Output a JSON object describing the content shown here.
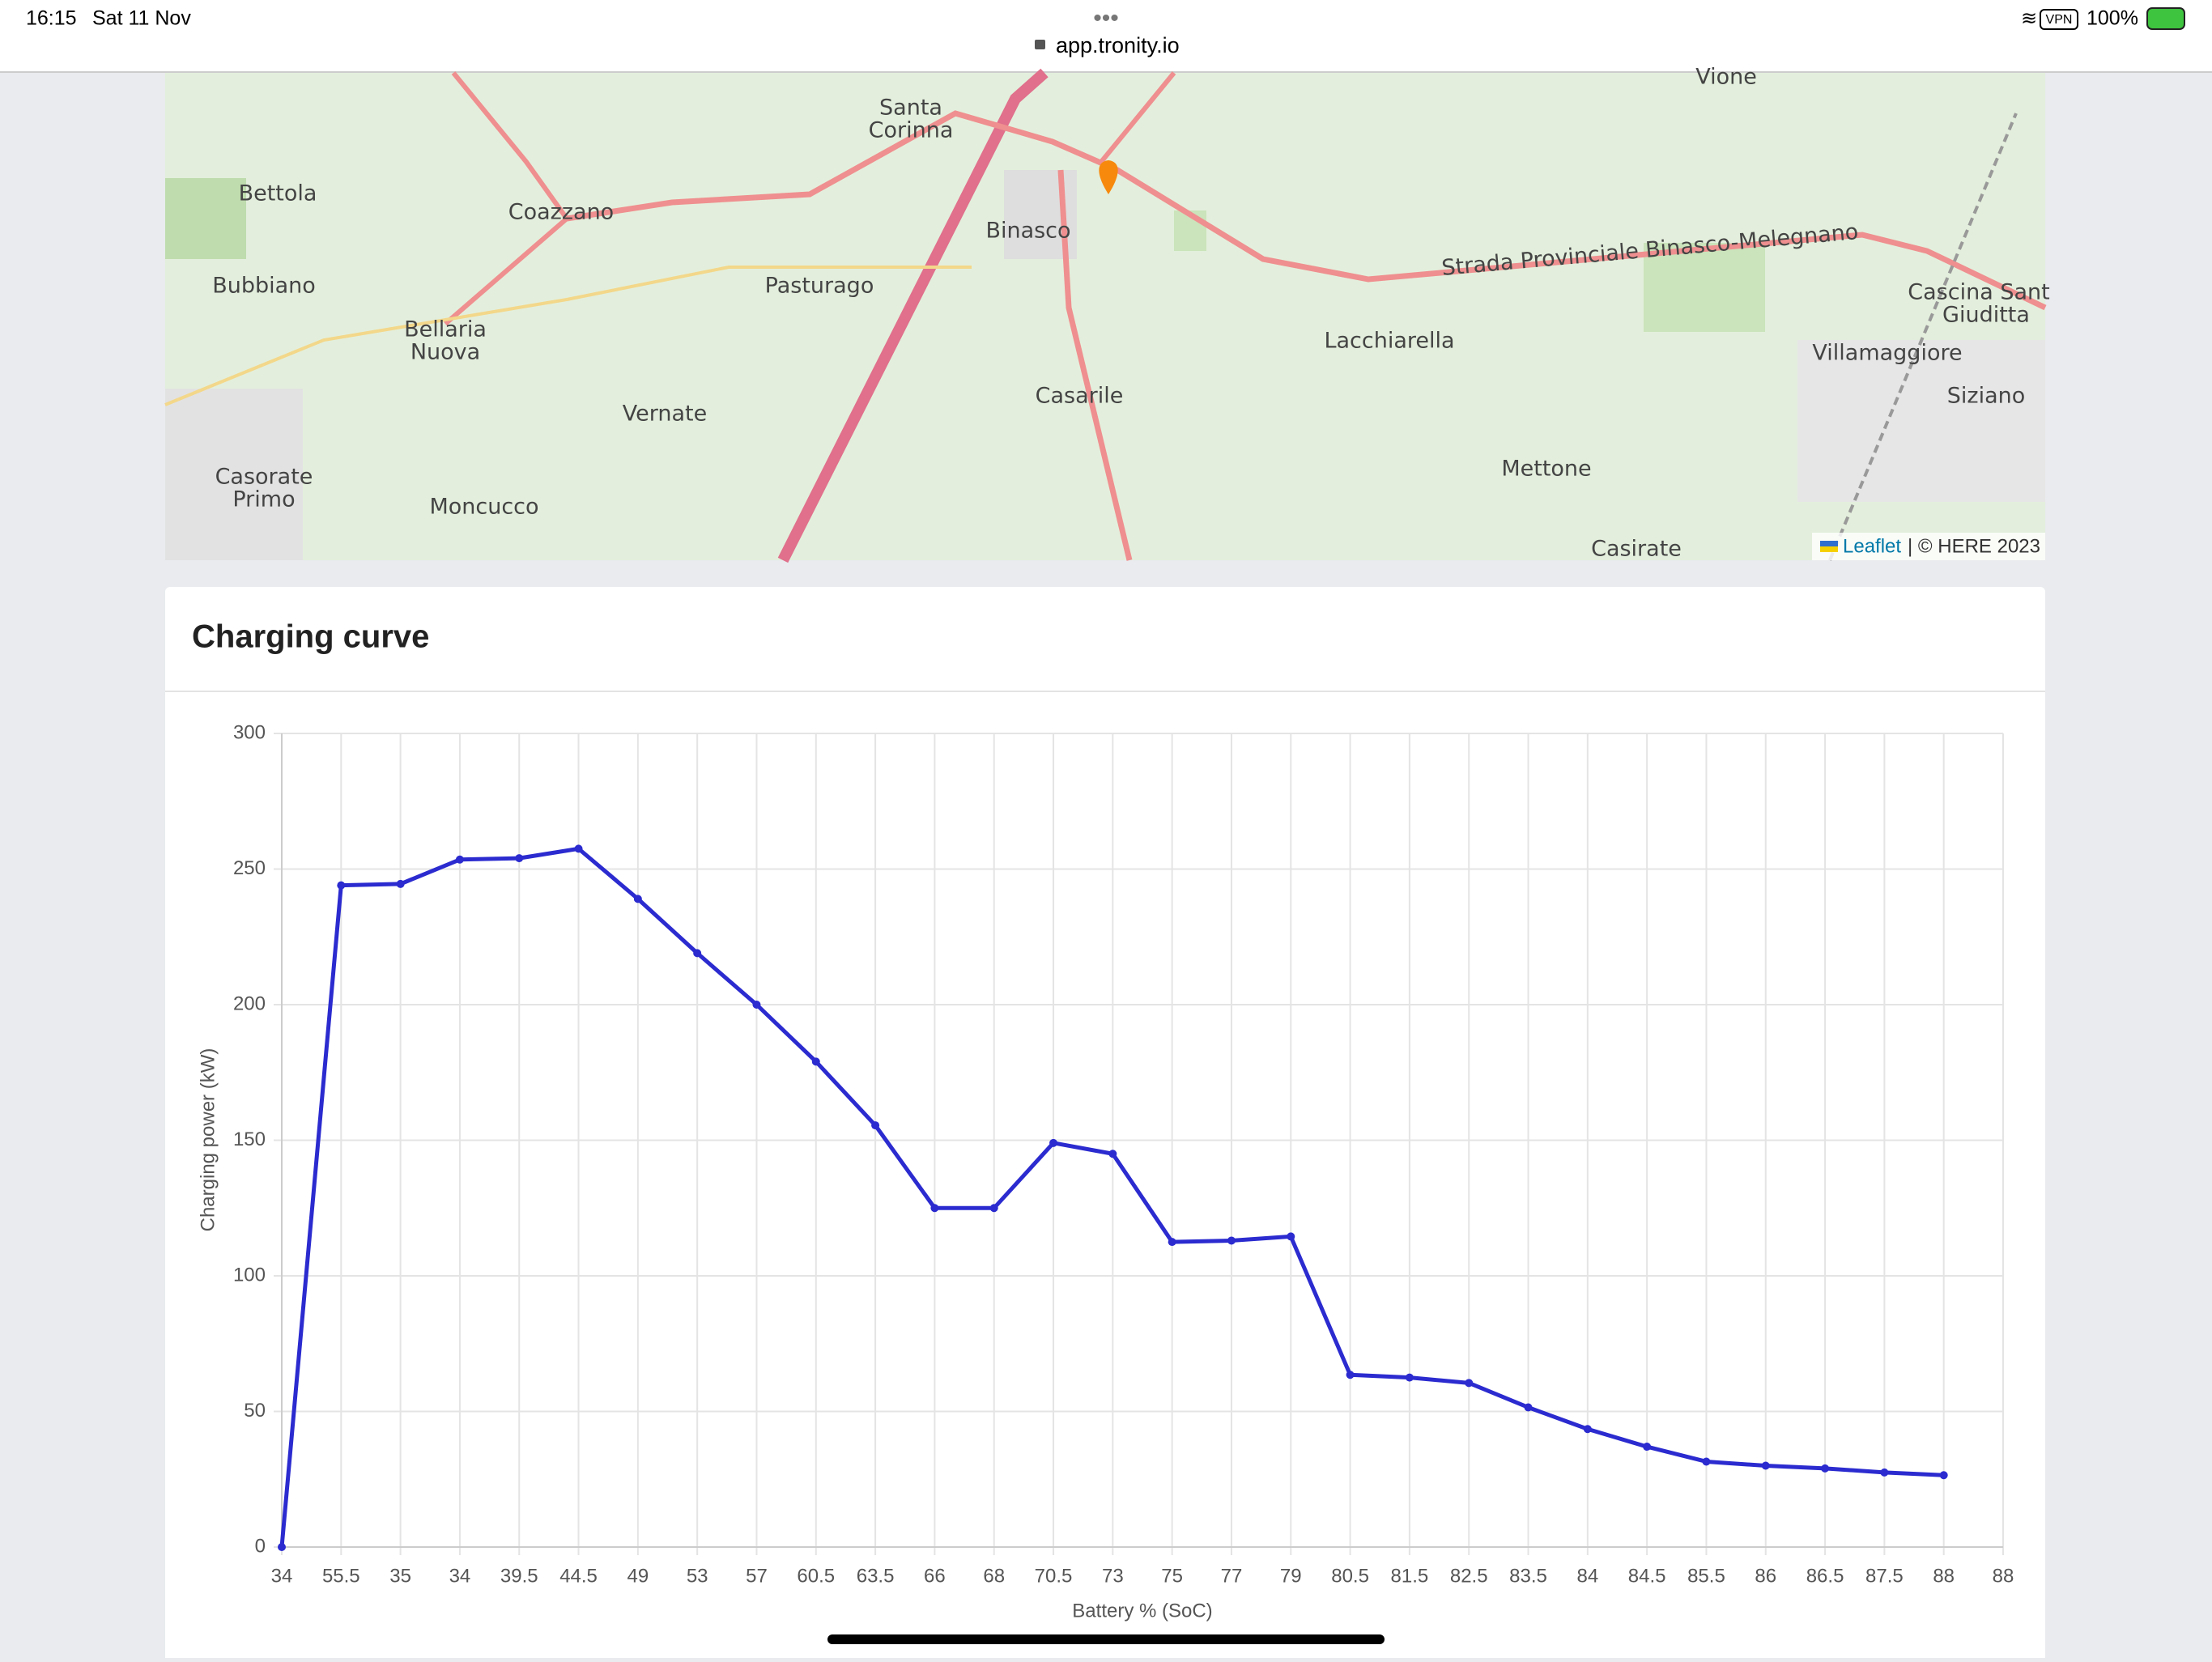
{
  "status_bar": {
    "time": "16:15",
    "date": "Sat 11 Nov",
    "url": "app.tronity.io",
    "vpn": "VPN",
    "battery": "100%"
  },
  "map": {
    "places": [
      "Bettola",
      "Coazzano",
      "Bubbiano",
      "Bellaria",
      "Nuova",
      "Vernate",
      "Casorate",
      "Primo",
      "Moncucco",
      "Pasturago",
      "Santa",
      "Corinna",
      "Binasco",
      "Casarile",
      "Lacchiarella",
      "Mettone",
      "Casirate",
      "Siziano",
      "Vione",
      "Strada Provinciale Binasco-Melegnano",
      "Cascina Sant",
      "Giuditta",
      "Villamaggiore"
    ],
    "attribution": {
      "leaflet": "Leaflet",
      "provider": "| © HERE 2023"
    }
  },
  "chart_data": {
    "type": "line",
    "title": "Charging curve",
    "x_label": "Battery % (SoC)",
    "y_label": "Charging power (kW)",
    "categories": [
      "34",
      "55.5",
      "35",
      "34",
      "39.5",
      "44.5",
      "49",
      "53",
      "57",
      "60.5",
      "63.5",
      "66",
      "68",
      "70.5",
      "73",
      "75",
      "77",
      "79",
      "80.5",
      "81.5",
      "82.5",
      "83.5",
      "84",
      "84.5",
      "85.5",
      "86",
      "86.5",
      "87.5",
      "88",
      "88"
    ],
    "series": [
      {
        "name": "Charging power",
        "color": "#2b2bd0",
        "values": [
          0,
          244,
          244.5,
          253.5,
          254,
          257.5,
          239,
          219,
          200,
          179,
          155.5,
          125,
          125,
          149,
          145,
          112.5,
          113,
          114.5,
          63.5,
          62.5,
          60.5,
          51.5,
          43.5,
          37,
          31.5,
          30,
          29,
          27.5,
          26.5,
          null
        ]
      }
    ],
    "ylim": [
      0,
      300
    ],
    "yticks": [
      0,
      50,
      100,
      150,
      200,
      250,
      300
    ],
    "grid": true
  }
}
